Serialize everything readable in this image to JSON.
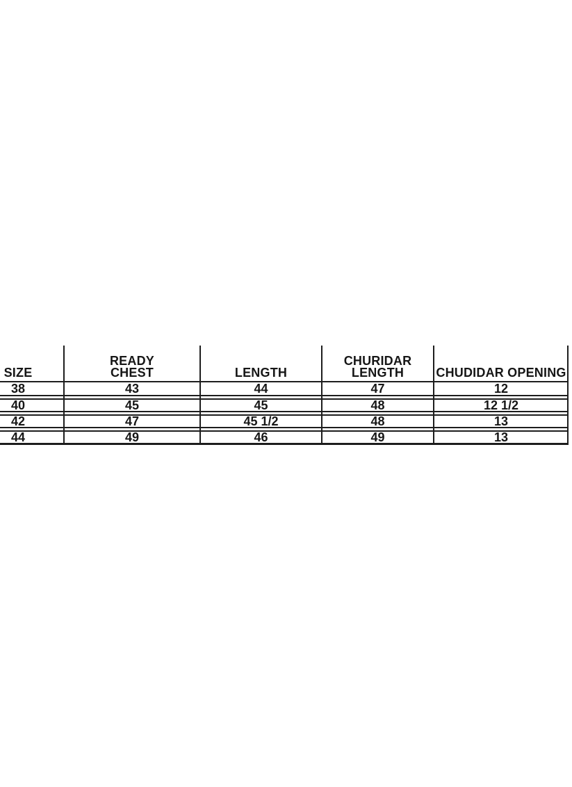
{
  "table": {
    "headers": [
      {
        "lines": [
          "SIZE"
        ]
      },
      {
        "lines": [
          "READY",
          "CHEST"
        ]
      },
      {
        "lines": [
          "LENGTH"
        ]
      },
      {
        "lines": [
          "CHURIDAR",
          "LENGTH"
        ]
      },
      {
        "lines": [
          "CHUDIDAR OPENING"
        ]
      }
    ],
    "rows": [
      [
        "38",
        "43",
        "44",
        "47",
        "12"
      ],
      [
        "40",
        "45",
        "45",
        "48",
        "12 1/2"
      ],
      [
        "42",
        "47",
        "45 1/2",
        "48",
        "13"
      ],
      [
        "44",
        "49",
        "46",
        "49",
        "13"
      ]
    ]
  },
  "colors": {
    "background": "#ffffff",
    "text": "#161616",
    "rule": "#1d1d1d"
  },
  "chart_data": {
    "type": "table",
    "title": "Size chart",
    "columns": [
      "SIZE",
      "READY CHEST",
      "LENGTH",
      "CHURIDAR LENGTH",
      "CHUDIDAR OPENING"
    ],
    "rows": [
      [
        38,
        43,
        44,
        47,
        "12"
      ],
      [
        40,
        45,
        45,
        48,
        "12 1/2"
      ],
      [
        42,
        47,
        "45 1/2",
        48,
        "13"
      ],
      [
        44,
        49,
        46,
        49,
        "13"
      ]
    ],
    "layout": {
      "left_edge_clipped": true,
      "row_separators": "double-line",
      "bottom_rule": "thick"
    }
  }
}
